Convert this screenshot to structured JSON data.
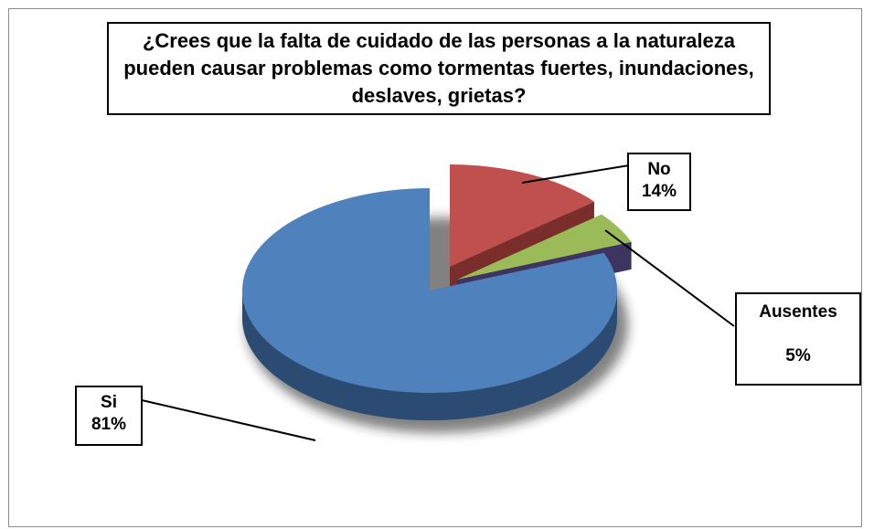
{
  "chart_data": {
    "type": "pie",
    "title": "¿Crees que la falta de cuidado de las personas a la naturaleza pueden causar problemas como tormentas fuertes, inundaciones, deslaves, grietas?",
    "slices": [
      {
        "name": "Si",
        "value": 81,
        "label": "81%",
        "color": "#4f81bd",
        "side": "#2b4b73"
      },
      {
        "name": "No",
        "value": 14,
        "label": "14%",
        "color": "#c0504d",
        "side": "#7a2e2c"
      },
      {
        "name": "Ausentes",
        "value": 5,
        "label": "5%",
        "color": "#9bbb59",
        "side": "#3d3560"
      }
    ],
    "legend": "none"
  }
}
